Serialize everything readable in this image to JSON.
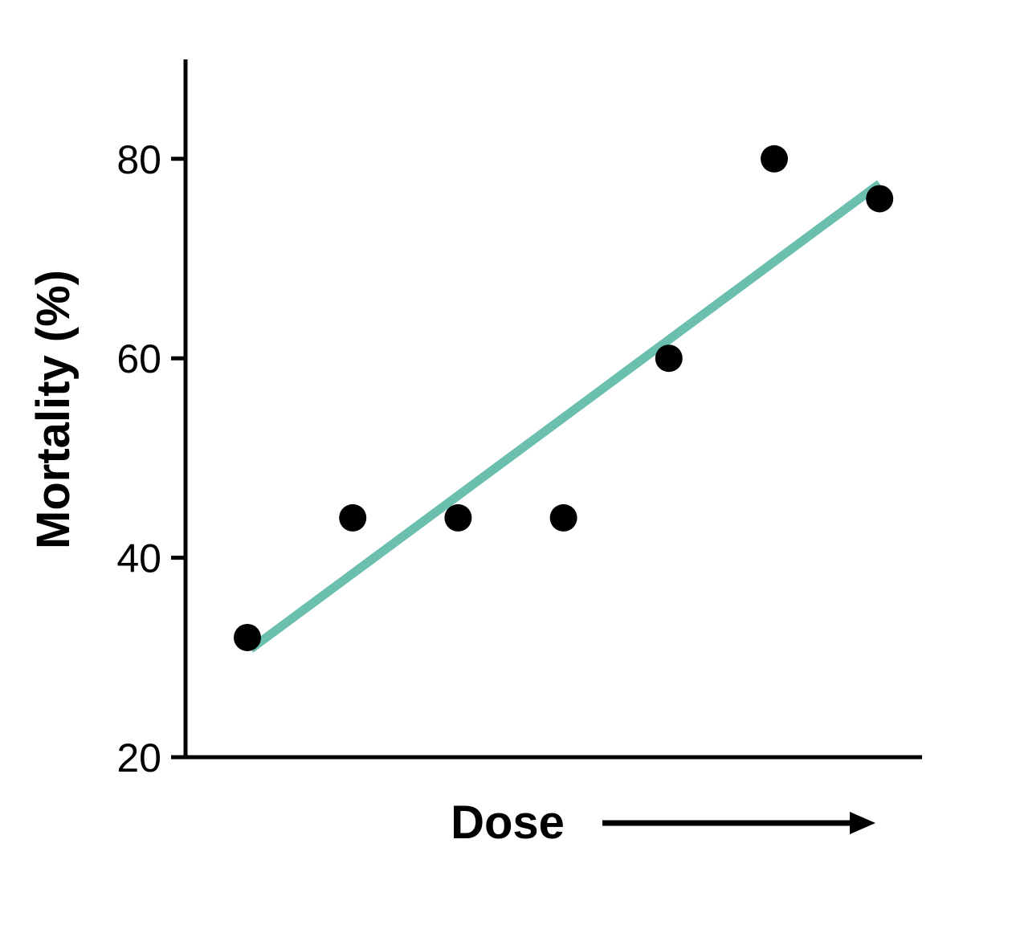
{
  "chart_data": {
    "type": "scatter",
    "xlabel": "Dose",
    "ylabel": "Mortality (%)",
    "ylim": [
      20,
      90
    ],
    "y_ticks": [
      20,
      40,
      60,
      80
    ],
    "x_ticks_labeled": false,
    "grid": false,
    "points": [
      {
        "x": 1,
        "y": 32
      },
      {
        "x": 2,
        "y": 44
      },
      {
        "x": 3,
        "y": 44
      },
      {
        "x": 4,
        "y": 44
      },
      {
        "x": 5,
        "y": 60
      },
      {
        "x": 6,
        "y": 80
      },
      {
        "x": 7,
        "y": 76
      }
    ],
    "fit_line": {
      "x": [
        1,
        7
      ],
      "y": [
        31,
        77.5
      ]
    },
    "x_direction_arrow": "increasing to the right",
    "colors": {
      "points": "#000000",
      "fit_line": "#6bbfae",
      "axes": "#000000"
    }
  }
}
